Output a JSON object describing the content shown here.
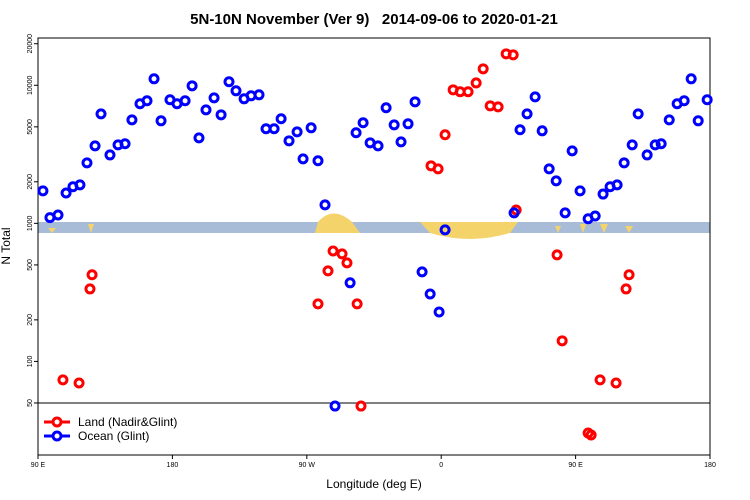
{
  "chart_data": {
    "type": "scatter",
    "title": "5N-10N November (Ver 9)   2014-09-06 to 2020-01-21",
    "x_label": "Longitude (deg E)",
    "y_label": "N Total",
    "ylog": true,
    "legend": "lower-left",
    "xlim": [
      90,
      540
    ],
    "xticks": [
      {
        "value": 90,
        "label": "90 E"
      },
      180,
      {
        "value": 270,
        "label": "90 W"
      },
      {
        "value": 360,
        "label": "0"
      },
      {
        "value": 450,
        "label": "90 E"
      },
      {
        "value": 540,
        "label": "180"
      }
    ],
    "ylim": [
      21,
      22000
    ],
    "yticks": [
      50,
      100,
      200,
      500,
      1000,
      2000,
      5000,
      10000,
      20000
    ],
    "series": [
      {
        "name": "Land (Nadir&Glint)",
        "color": "#ff0000",
        "x": [
          106.7,
          117.5,
          124.8,
          126.2,
          277.5,
          284.2,
          287.6,
          293.6,
          296.9,
          303.7,
          306.3,
          353.2,
          357.9,
          362.6,
          368.0,
          372.7,
          378.0,
          383.4,
          388.1,
          392.8,
          398.1,
          403.5,
          408.2,
          410.2,
          437.6,
          441.0,
          458.4,
          460.4,
          466.4,
          477.1,
          483.8,
          485.8
        ],
        "values": [
          73.5,
          69.8,
          335,
          424,
          261,
          453,
          631,
          601,
          517,
          261,
          47.5,
          2610,
          2480,
          4380,
          9270,
          8980,
          8980,
          10400,
          13160,
          7100,
          6980,
          16900,
          16600,
          1250,
          591,
          141,
          30.3,
          29.3,
          73.5,
          69.8,
          335,
          424
        ]
      },
      {
        "name": "Ocean (Glint)",
        "color": "#0000ff",
        "x": [
          93.3,
          98.0,
          103.4,
          108.8,
          113.4,
          118.1,
          122.8,
          128.2,
          132.2,
          138.2,
          143.6,
          148.3,
          152.9,
          158.3,
          163.0,
          167.7,
          172.4,
          178.4,
          183.1,
          188.5,
          193.2,
          197.8,
          202.5,
          207.9,
          212.6,
          217.9,
          222.6,
          228.0,
          232.7,
          238.0,
          242.7,
          248.1,
          252.8,
          258.1,
          263.5,
          267.5,
          272.9,
          277.5,
          282.2,
          288.9,
          299.0,
          303.0,
          307.7,
          312.4,
          317.7,
          323.1,
          328.5,
          333.1,
          337.8,
          342.5,
          347.2,
          352.6,
          358.6,
          362.6,
          408.8,
          412.8,
          417.5,
          422.9,
          427.6,
          432.3,
          437.0,
          443.0,
          447.7,
          453.0,
          458.4,
          463.1,
          468.4,
          473.1,
          477.8,
          482.5,
          487.9,
          491.9,
          497.9,
          503.3,
          507.3,
          512.7,
          518.0,
          522.7,
          527.4,
          532.1,
          538.1
        ],
        "values": [
          1720,
          1100,
          1150,
          1660,
          1840,
          1900,
          2740,
          3640,
          6210,
          3130,
          3700,
          3770,
          5620,
          7350,
          7720,
          11140,
          5530,
          7850,
          7350,
          7720,
          9910,
          4160,
          6640,
          8110,
          6110,
          10600,
          9120,
          7980,
          8390,
          8530,
          4840,
          4840,
          5720,
          3960,
          4600,
          2930,
          4920,
          2840,
          1360,
          47.5,
          371,
          4530,
          5350,
          3830,
          3640,
          6870,
          5170,
          3890,
          5260,
          7590,
          445,
          308,
          228,
          897,
          1190,
          4760,
          6210,
          8240,
          4680,
          2480,
          2030,
          1190,
          3350,
          1720,
          1080,
          1130,
          1630,
          1840,
          1900,
          2740,
          3700,
          6210,
          3130,
          3700,
          3770,
          5620,
          7350,
          7720,
          11140,
          5530,
          7850
        ]
      }
    ]
  }
}
